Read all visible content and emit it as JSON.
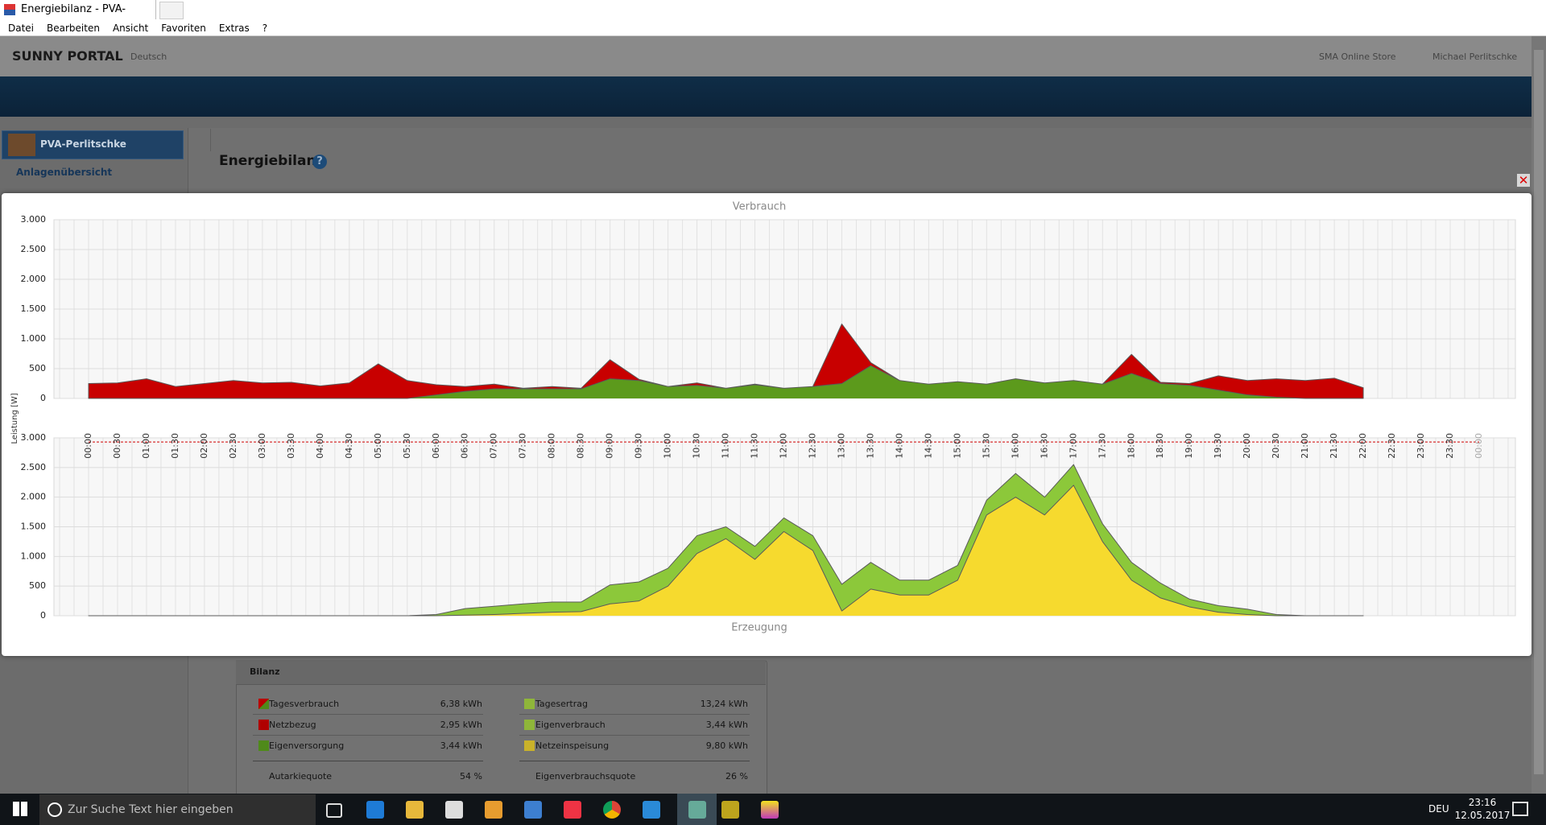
{
  "browser": {
    "tab_title": "Energiebilanz - PVA-Perlitsc...",
    "menu": [
      "Datei",
      "Bearbeiten",
      "Ansicht",
      "Favoriten",
      "Extras",
      "?"
    ]
  },
  "portal": {
    "brand": "SUNNY PORTAL",
    "language": "Deutsch",
    "store": "SMA Online Store",
    "user": "Michael Perlitschke",
    "plant": "PVA-Perlitschke",
    "nav": [
      "Anlagenübersicht"
    ],
    "page_title": "Energiebilanz"
  },
  "bilanz": {
    "title": "Bilanz",
    "rows": [
      [
        "Tagesverbrauch",
        "6,38 kWh",
        "Tagesertrag",
        "13,24 kWh"
      ],
      [
        "Netzbezug",
        "2,95 kWh",
        "Eigenverbrauch",
        "3,44 kWh"
      ],
      [
        "Eigenversorgung",
        "3,44 kWh",
        "Netzeinspeisung",
        "9,80 kWh"
      ],
      [
        "Autarkiequote",
        "54 %",
        "Eigenverbrauchsquote",
        "26 %"
      ]
    ]
  },
  "chart_data": {
    "type": "stacked_area",
    "y_label": "Leistung [W]",
    "categories": [
      "00:00",
      "00:30",
      "01:00",
      "01:30",
      "02:00",
      "02:30",
      "03:00",
      "03:30",
      "04:00",
      "04:30",
      "05:00",
      "05:30",
      "06:00",
      "06:30",
      "07:00",
      "07:30",
      "08:00",
      "08:30",
      "09:00",
      "09:30",
      "10:00",
      "10:30",
      "11:00",
      "11:30",
      "12:00",
      "12:30",
      "13:00",
      "13:30",
      "14:00",
      "14:30",
      "15:00",
      "15:30",
      "16:00",
      "16:30",
      "17:00",
      "17:30",
      "18:00",
      "18:30",
      "19:00",
      "19:30",
      "20:00",
      "20:30",
      "21:00",
      "21:30",
      "22:00",
      "22:30",
      "23:00",
      "23:30",
      "00:00"
    ],
    "ylim": [
      0,
      3000
    ],
    "yticks": [
      0,
      500,
      {
        "value": 1000,
        "label": "1.000"
      },
      {
        "value": 1500,
        "label": "1.500"
      },
      {
        "value": 2000,
        "label": "2.000"
      },
      {
        "value": 2500,
        "label": "2.500"
      },
      {
        "value": 3000,
        "label": "3.000"
      }
    ],
    "grid": true,
    "panels": [
      {
        "title": "Verbrauch",
        "series": [
          {
            "color": "#5c9a1c",
            "values": [
              0,
              0,
              0,
              0,
              0,
              0,
              0,
              0,
              0,
              0,
              0,
              0,
              60,
              120,
              160,
              160,
              160,
              160,
              330,
              300,
              200,
              220,
              170,
              230,
              170,
              200,
              250,
              550,
              300,
              240,
              280,
              240,
              330,
              260,
              300,
              240,
              420,
              250,
              220,
              140,
              60,
              20,
              0,
              0,
              0,
              null,
              null,
              null,
              null
            ]
          },
          {
            "color": "#c80000",
            "values": [
              250,
              260,
              330,
              200,
              250,
              300,
              260,
              270,
              210,
              260,
              580,
              300,
              170,
              80,
              80,
              10,
              40,
              10,
              320,
              20,
              0,
              40,
              0,
              10,
              0,
              0,
              1000,
              50,
              0,
              0,
              0,
              0,
              0,
              0,
              0,
              0,
              320,
              20,
              30,
              240,
              240,
              310,
              300,
              340,
              180,
              null,
              null,
              null,
              null
            ]
          }
        ]
      },
      {
        "title": "Erzeugung",
        "series": [
          {
            "color": "#f6da2e",
            "values": [
              0,
              0,
              0,
              0,
              0,
              0,
              0,
              0,
              0,
              0,
              0,
              0,
              0,
              10,
              20,
              40,
              60,
              70,
              200,
              250,
              500,
              1050,
              1300,
              950,
              1420,
              1100,
              80,
              450,
              350,
              350,
              600,
              1700,
              2000,
              1700,
              2200,
              1250,
              600,
              300,
              150,
              60,
              20,
              0,
              0,
              0,
              0,
              null,
              null,
              null,
              null
            ]
          },
          {
            "color": "#8cc83a",
            "values": [
              0,
              0,
              0,
              0,
              0,
              0,
              0,
              0,
              0,
              0,
              0,
              0,
              20,
              110,
              140,
              160,
              170,
              160,
              320,
              320,
              300,
              300,
              200,
              220,
              230,
              250,
              450,
              450,
              250,
              250,
              250,
              250,
              400,
              300,
              350,
              300,
              300,
              250,
              130,
              110,
              90,
              20,
              0,
              0,
              0,
              null,
              null,
              null,
              null
            ]
          }
        ],
        "limit_line": {
          "value": 2930,
          "color": "#d00000"
        }
      }
    ]
  },
  "taskbar": {
    "search": "Zur Suche Text hier eingeben",
    "language": "DEU",
    "time": "23:16",
    "date": "12.05.2017"
  }
}
